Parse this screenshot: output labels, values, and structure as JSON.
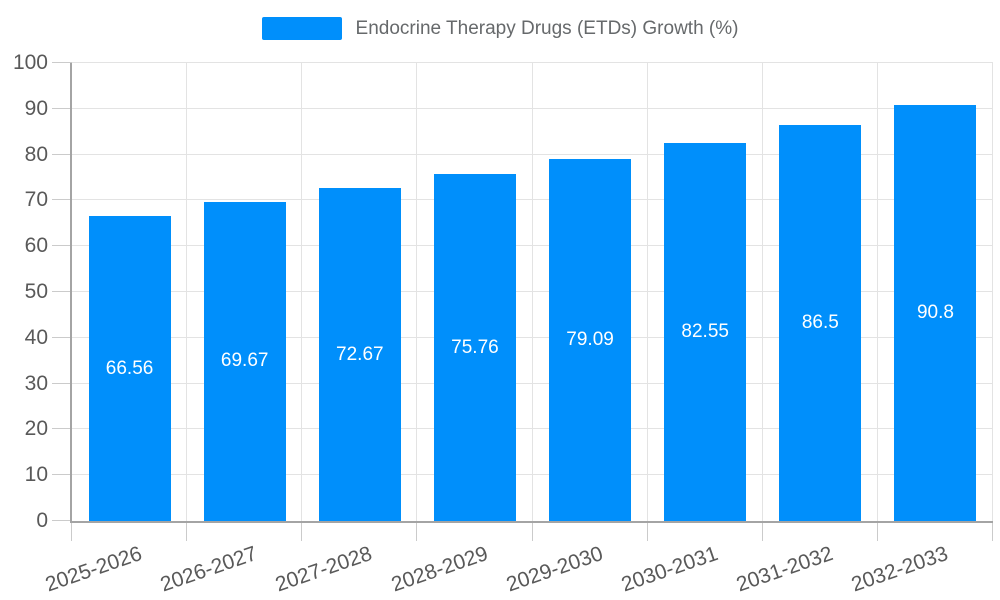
{
  "chart_data": {
    "type": "bar",
    "title": "Endocrine Therapy Drugs (ETDs) Growth (%)",
    "legend": {
      "position": "top",
      "label": "Endocrine Therapy Drugs (ETDs) Growth (%)"
    },
    "categories": [
      "2025-2026",
      "2026-2027",
      "2027-2028",
      "2028-2029",
      "2029-2030",
      "2030-2031",
      "2031-2032",
      "2032-2033"
    ],
    "values": [
      66.56,
      69.67,
      72.67,
      75.76,
      79.09,
      82.55,
      86.5,
      90.8
    ],
    "value_labels": [
      "66.56",
      "69.67",
      "72.67",
      "75.76",
      "79.09",
      "82.55",
      "86.5",
      "90.8"
    ],
    "xlabel": "",
    "ylabel": "",
    "ylim": [
      0,
      100
    ],
    "ytick_step": 10,
    "ytick_labels": [
      "0",
      "10",
      "20",
      "30",
      "40",
      "50",
      "60",
      "70",
      "80",
      "90",
      "100"
    ],
    "grid": true,
    "x_label_rotation_deg": -19,
    "colors": {
      "bar": "#008FFB",
      "grid_line": "#e3e3e3",
      "axis_line": "#a4a4a4",
      "tick": "#cbcbcb",
      "axis_label": "#595959",
      "legend_text": "#66696B",
      "value_label": "#ffffff",
      "background": "#ffffff"
    }
  }
}
